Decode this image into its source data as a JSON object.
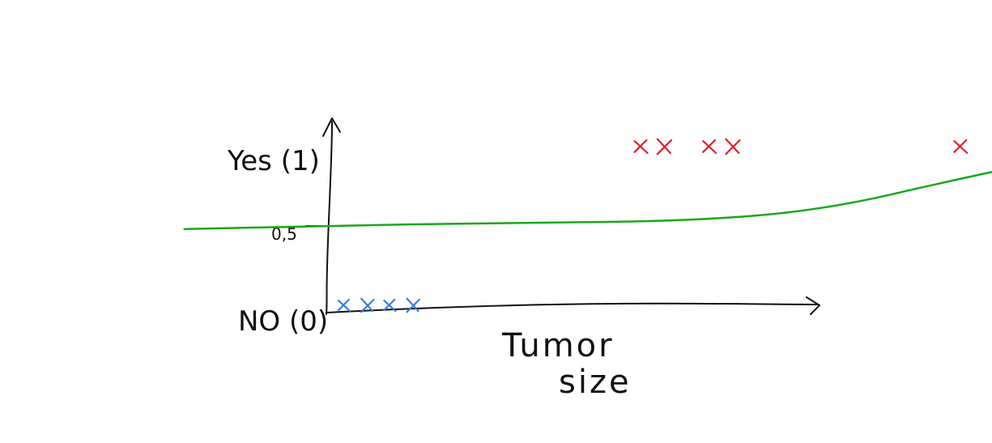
{
  "chart_data": {
    "type": "scatter",
    "title": "",
    "xlabel": [
      "Tumor",
      "size"
    ],
    "ylabel": "",
    "y_tick_labels": {
      "yes": "Yes (1)",
      "threshold": "0,5",
      "no": "NO (0)"
    },
    "points": [
      {
        "group": "no",
        "x": 1,
        "y": 0
      },
      {
        "group": "no",
        "x": 2,
        "y": 0
      },
      {
        "group": "no",
        "x": 3,
        "y": 0
      },
      {
        "group": "no",
        "x": 4,
        "y": 0
      },
      {
        "group": "yes",
        "x": 14,
        "y": 1
      },
      {
        "group": "yes",
        "x": 15,
        "y": 1
      },
      {
        "group": "yes",
        "x": 17,
        "y": 1
      },
      {
        "group": "yes",
        "x": 18,
        "y": 1
      },
      {
        "group": "yes",
        "x": 28,
        "y": 1
      }
    ],
    "fit_line": [
      {
        "x": -6,
        "y": 0.48
      },
      {
        "x": 0,
        "y": 0.5
      },
      {
        "x": 8,
        "y": 0.52
      },
      {
        "x": 16,
        "y": 0.53
      },
      {
        "x": 22,
        "y": 0.6
      },
      {
        "x": 28,
        "y": 0.8
      },
      {
        "x": 34,
        "y": 0.98
      }
    ],
    "colors": {
      "no": "#3b7ddd",
      "yes": "#e0202a",
      "fit_line": "#18a818",
      "axes": "#111111"
    }
  }
}
